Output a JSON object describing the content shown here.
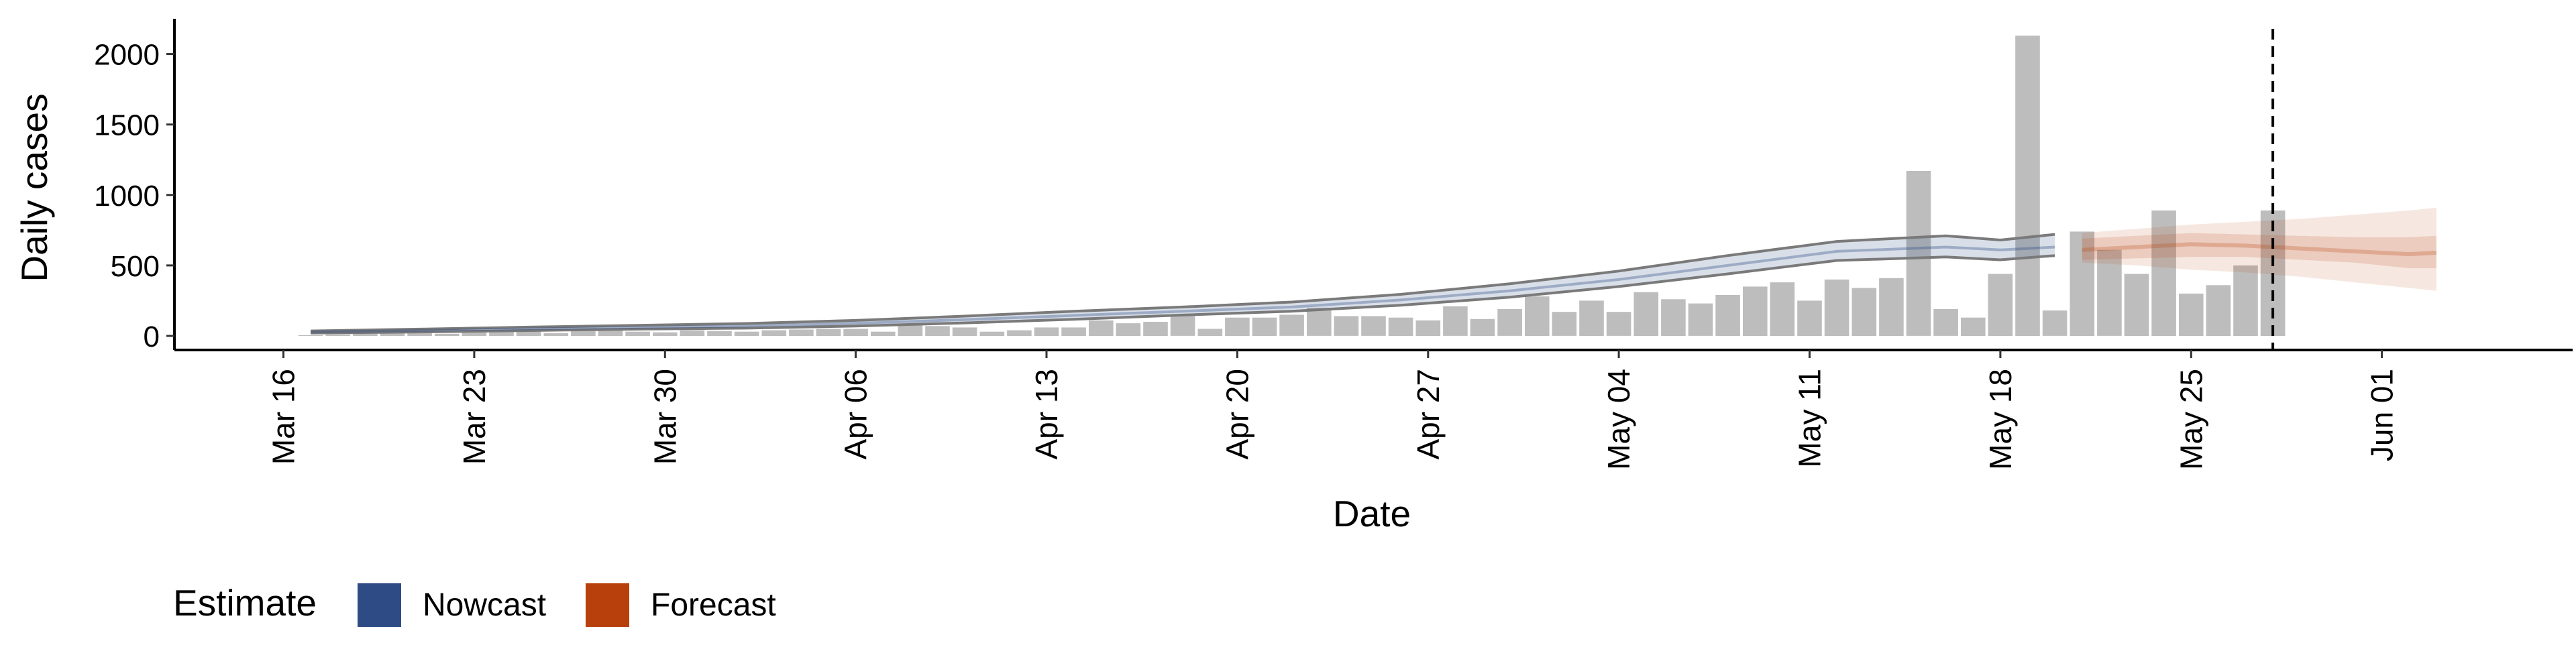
{
  "chart_data": {
    "type": "bar",
    "title": "",
    "xlabel": "Date",
    "ylabel": "Daily cases",
    "ylim": [
      -100,
      2250
    ],
    "yticks": [
      0,
      500,
      1000,
      1500,
      2000
    ],
    "xlim": [
      "2020-03-12",
      "2020-06-08"
    ],
    "xticks": [
      {
        "date": "2020-03-16",
        "label": "Mar 16"
      },
      {
        "date": "2020-03-23",
        "label": "Mar 23"
      },
      {
        "date": "2020-03-30",
        "label": "Mar 30"
      },
      {
        "date": "2020-04-06",
        "label": "Apr 06"
      },
      {
        "date": "2020-04-13",
        "label": "Apr 13"
      },
      {
        "date": "2020-04-20",
        "label": "Apr 20"
      },
      {
        "date": "2020-04-27",
        "label": "Apr 27"
      },
      {
        "date": "2020-05-04",
        "label": "May 04"
      },
      {
        "date": "2020-05-11",
        "label": "May 11"
      },
      {
        "date": "2020-05-18",
        "label": "May 18"
      },
      {
        "date": "2020-05-25",
        "label": "May 25"
      },
      {
        "date": "2020-06-01",
        "label": "Jun 01"
      }
    ],
    "grid": false,
    "legend": {
      "position": "bottom-left",
      "title": "Estimate",
      "entries": [
        {
          "label": "Nowcast",
          "color": "#2F4B85"
        },
        {
          "label": "Forecast",
          "color": "#B8400C"
        }
      ]
    },
    "vline": {
      "date": "2020-05-28",
      "style": "dashed"
    },
    "reported_cases": {
      "color": "#BDBDBD",
      "dates": [
        "2020-03-17",
        "2020-03-18",
        "2020-03-19",
        "2020-03-20",
        "2020-03-21",
        "2020-03-22",
        "2020-03-23",
        "2020-03-24",
        "2020-03-25",
        "2020-03-26",
        "2020-03-27",
        "2020-03-28",
        "2020-03-29",
        "2020-03-30",
        "2020-03-31",
        "2020-04-01",
        "2020-04-02",
        "2020-04-03",
        "2020-04-04",
        "2020-04-05",
        "2020-04-06",
        "2020-04-07",
        "2020-04-08",
        "2020-04-09",
        "2020-04-10",
        "2020-04-11",
        "2020-04-12",
        "2020-04-13",
        "2020-04-14",
        "2020-04-15",
        "2020-04-16",
        "2020-04-17",
        "2020-04-18",
        "2020-04-19",
        "2020-04-20",
        "2020-04-21",
        "2020-04-22",
        "2020-04-23",
        "2020-04-24",
        "2020-04-25",
        "2020-04-26",
        "2020-04-27",
        "2020-04-28",
        "2020-04-29",
        "2020-04-30",
        "2020-05-01",
        "2020-05-02",
        "2020-05-03",
        "2020-05-04",
        "2020-05-05",
        "2020-05-06",
        "2020-05-07",
        "2020-05-08",
        "2020-05-09",
        "2020-05-10",
        "2020-05-11",
        "2020-05-12",
        "2020-05-13",
        "2020-05-14",
        "2020-05-15",
        "2020-05-16",
        "2020-05-17",
        "2020-05-18",
        "2020-05-19",
        "2020-05-20",
        "2020-05-21",
        "2020-05-22",
        "2020-05-23",
        "2020-05-24",
        "2020-05-25",
        "2020-05-26",
        "2020-05-27",
        "2020-05-28"
      ],
      "values": [
        5,
        10,
        15,
        20,
        25,
        15,
        25,
        30,
        35,
        20,
        40,
        45,
        30,
        25,
        40,
        35,
        30,
        40,
        45,
        50,
        50,
        30,
        80,
        70,
        60,
        30,
        40,
        60,
        60,
        110,
        90,
        100,
        140,
        50,
        130,
        130,
        150,
        200,
        140,
        140,
        130,
        110,
        210,
        120,
        190,
        280,
        170,
        250,
        170,
        310,
        260,
        230,
        290,
        350,
        380,
        250,
        400,
        340,
        410,
        1170,
        190,
        130,
        440,
        2130,
        180,
        740,
        610,
        440,
        890,
        300,
        360,
        500,
        890
      ]
    },
    "nowcast": {
      "color": "#2F4B85",
      "dates": [
        "2020-03-17",
        "2020-03-21",
        "2020-03-25",
        "2020-03-29",
        "2020-04-02",
        "2020-04-06",
        "2020-04-10",
        "2020-04-14",
        "2020-04-18",
        "2020-04-22",
        "2020-04-26",
        "2020-04-30",
        "2020-05-04",
        "2020-05-08",
        "2020-05-12",
        "2020-05-16",
        "2020-05-18",
        "2020-05-20"
      ],
      "median": [
        28,
        38,
        50,
        60,
        70,
        90,
        115,
        145,
        175,
        205,
        255,
        320,
        400,
        500,
        600,
        630,
        610,
        630
      ],
      "upper_90": [
        35,
        48,
        62,
        75,
        88,
        110,
        140,
        175,
        205,
        240,
        295,
        370,
        460,
        570,
        670,
        710,
        680,
        720
      ],
      "lower_90": [
        20,
        28,
        38,
        48,
        55,
        70,
        92,
        118,
        148,
        175,
        218,
        275,
        350,
        440,
        535,
        560,
        540,
        570
      ]
    },
    "forecast": {
      "color": "#B8400C",
      "dates": [
        "2020-05-21",
        "2020-05-23",
        "2020-05-25",
        "2020-05-27",
        "2020-05-29",
        "2020-05-31",
        "2020-06-02",
        "2020-06-03"
      ],
      "median": [
        610,
        630,
        650,
        640,
        620,
        600,
        580,
        590
      ],
      "upper_50": [
        690,
        710,
        730,
        720,
        710,
        700,
        700,
        710
      ],
      "lower_50": [
        540,
        550,
        560,
        560,
        540,
        520,
        480,
        480
      ],
      "upper_90": [
        730,
        760,
        790,
        810,
        830,
        860,
        890,
        910
      ],
      "lower_90": [
        520,
        500,
        470,
        450,
        420,
        380,
        340,
        320
      ]
    }
  }
}
